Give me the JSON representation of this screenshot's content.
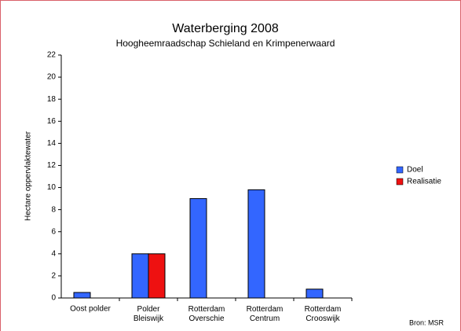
{
  "chart_data": {
    "type": "bar",
    "title": "Waterberging 2008",
    "subtitle": "Hoogheemraadschap Schieland en Krimpenerwaard",
    "ylabel": "Hectare oppervlaktewater",
    "source": "Bron: MSR",
    "categories": [
      "Oost polder",
      "Polder\nBleiswijk",
      "Rotterdam\nOverschie",
      "Rotterdam\nCentrum",
      "Rotterdam\nCrooswijk"
    ],
    "series": [
      {
        "name": "Doel",
        "color": "#3366ff",
        "values": [
          0.5,
          4,
          9,
          9.8,
          0.8
        ]
      },
      {
        "name": "Realisatie",
        "color": "#ee1111",
        "values": [
          null,
          4,
          null,
          null,
          null
        ]
      }
    ],
    "ylim": [
      0,
      22
    ],
    "yticks": [
      0,
      2,
      4,
      6,
      8,
      10,
      12,
      14,
      16,
      18,
      20,
      22
    ],
    "legend": "right"
  }
}
